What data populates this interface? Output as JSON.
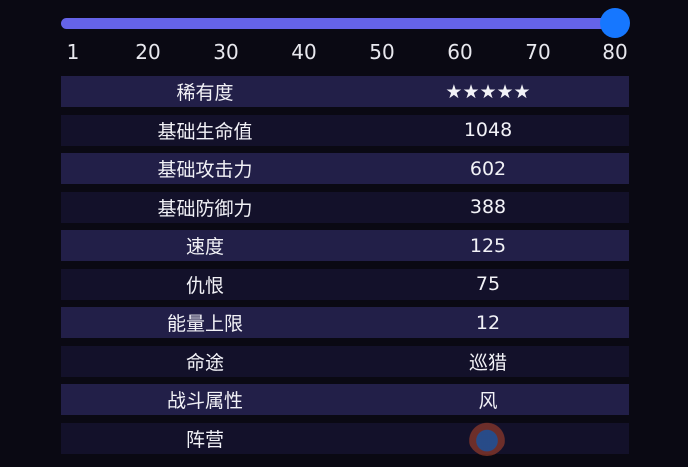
{
  "level_slider": {
    "min": 1,
    "max": 80,
    "value": 80,
    "fill_color": "#6563e8",
    "knob_color": "#1677ff",
    "ticks": [
      "1",
      "20",
      "30",
      "40",
      "50",
      "60",
      "70",
      "80"
    ]
  },
  "stats": [
    {
      "label": "稀有度",
      "value": "★★★★★"
    },
    {
      "label": "基础生命值",
      "value": "1048"
    },
    {
      "label": "基础攻击力",
      "value": "602"
    },
    {
      "label": "基础防御力",
      "value": "388"
    },
    {
      "label": "速度",
      "value": "125"
    },
    {
      "label": "仇恨",
      "value": "75"
    },
    {
      "label": "能量上限",
      "value": "12"
    },
    {
      "label": "命途",
      "value": "巡猎"
    },
    {
      "label": "战斗属性",
      "value": "风"
    },
    {
      "label": "阵营",
      "value": ""
    }
  ]
}
